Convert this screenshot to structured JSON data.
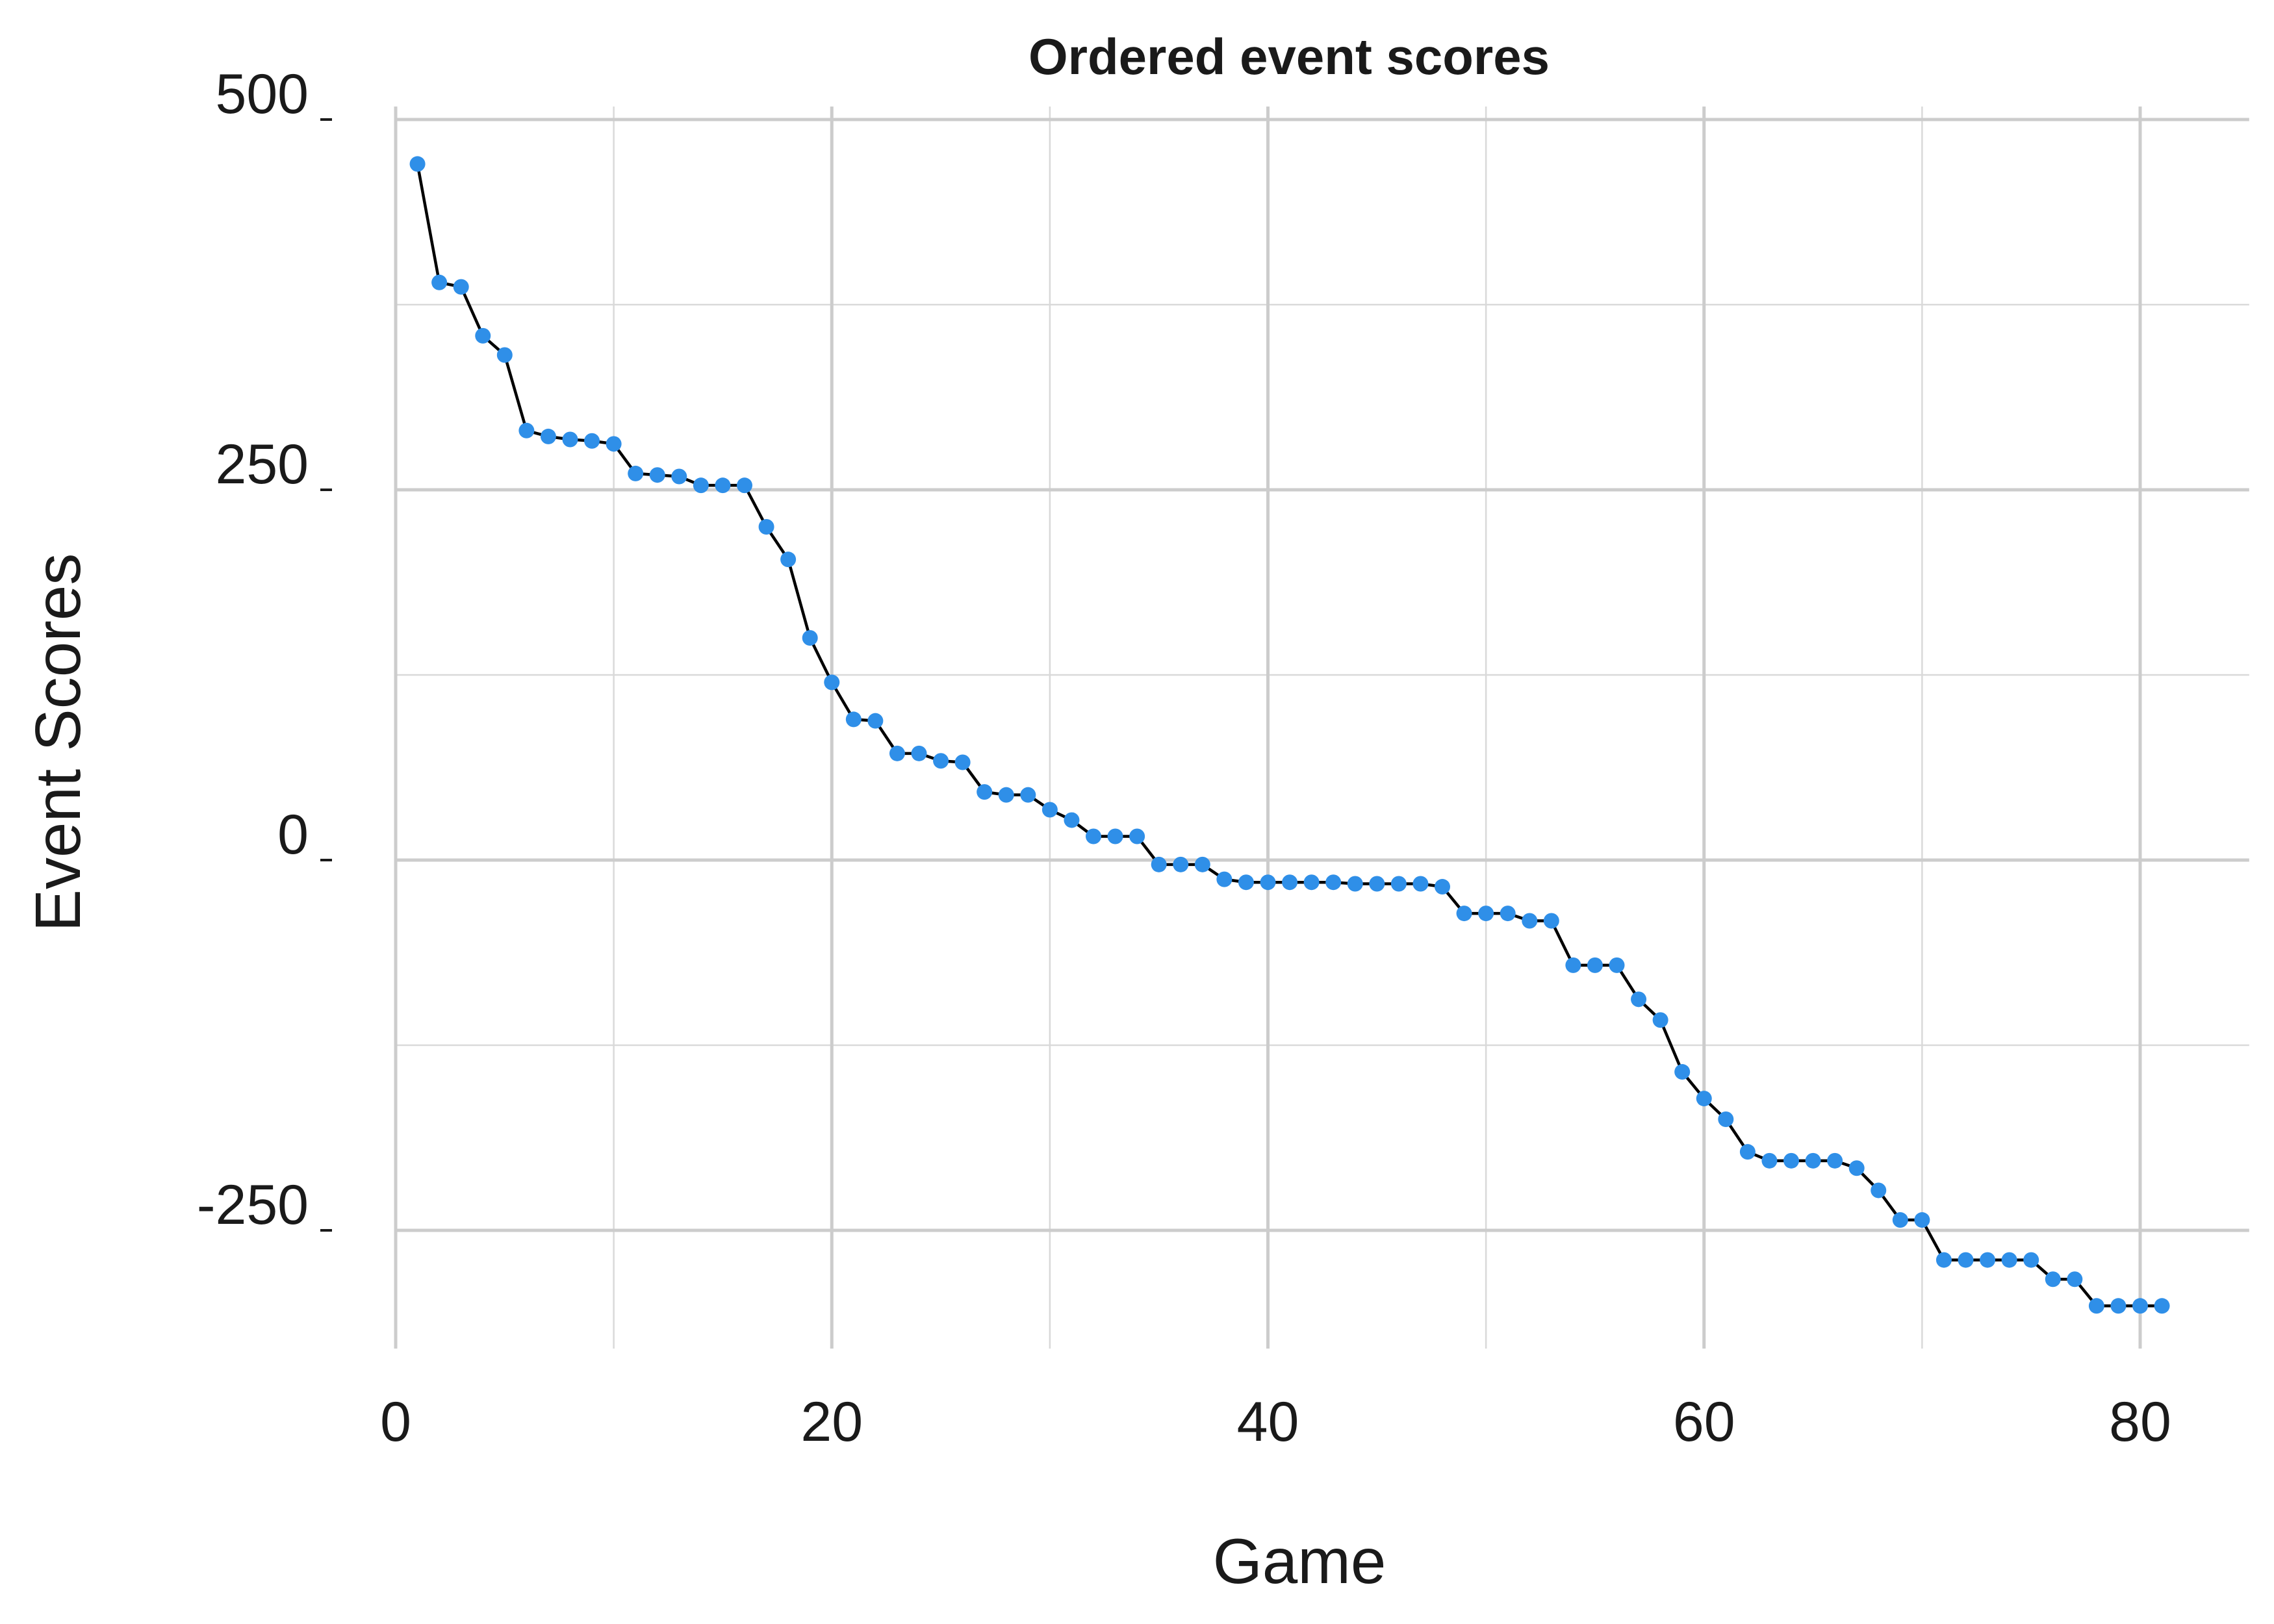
{
  "chart_data": {
    "type": "line",
    "title": "Ordered event scores",
    "xlabel": "Game",
    "ylabel": "Event Scores",
    "xlim": [
      0,
      85
    ],
    "ylim": [
      -330,
      500
    ],
    "x_ticks": [
      0,
      20,
      40,
      60,
      80
    ],
    "x_tick_labels": [
      "0",
      "20",
      "40",
      "60",
      "80"
    ],
    "y_ticks": [
      500,
      250,
      0,
      -250
    ],
    "y_tick_labels": [
      "500",
      "250",
      "0",
      "-250"
    ],
    "grid": true,
    "legend": "none",
    "colors": {
      "point": "#2f8fe8",
      "line": "#000000",
      "grid": "#cccccc"
    },
    "x": [
      1,
      2,
      3,
      4,
      5,
      6,
      7,
      8,
      9,
      10,
      11,
      12,
      13,
      14,
      15,
      16,
      17,
      18,
      19,
      20,
      21,
      22,
      23,
      24,
      25,
      26,
      27,
      28,
      29,
      30,
      31,
      32,
      33,
      34,
      35,
      36,
      37,
      38,
      39,
      40,
      41,
      42,
      43,
      44,
      45,
      46,
      47,
      48,
      49,
      50,
      51,
      52,
      53,
      54,
      55,
      56,
      57,
      58,
      59,
      60,
      61,
      62,
      63,
      64,
      65,
      66,
      67,
      68,
      69,
      70,
      71,
      72,
      73,
      74,
      75,
      76,
      77,
      78,
      79,
      80,
      81
    ],
    "values": [
      470,
      390,
      387,
      354,
      341,
      290,
      286,
      284,
      283,
      281,
      261,
      260,
      259,
      253,
      253,
      253,
      225,
      203,
      150,
      120,
      95,
      94,
      72,
      72,
      67,
      66,
      46,
      44,
      44,
      34,
      27,
      16,
      16,
      16,
      -3,
      -3,
      -3,
      -13,
      -15,
      -15,
      -15,
      -15,
      -15,
      -16,
      -16,
      -16,
      -16,
      -18,
      -36,
      -36,
      -36,
      -41,
      -41,
      -71,
      -71,
      -71,
      -94,
      -108,
      -143,
      -161,
      -175,
      -197,
      -203,
      -203,
      -203,
      -203,
      -208,
      -223,
      -243,
      -243,
      -270,
      -270,
      -270,
      -270,
      -270,
      -283,
      -283,
      -301,
      -301,
      -301,
      -301
    ]
  }
}
